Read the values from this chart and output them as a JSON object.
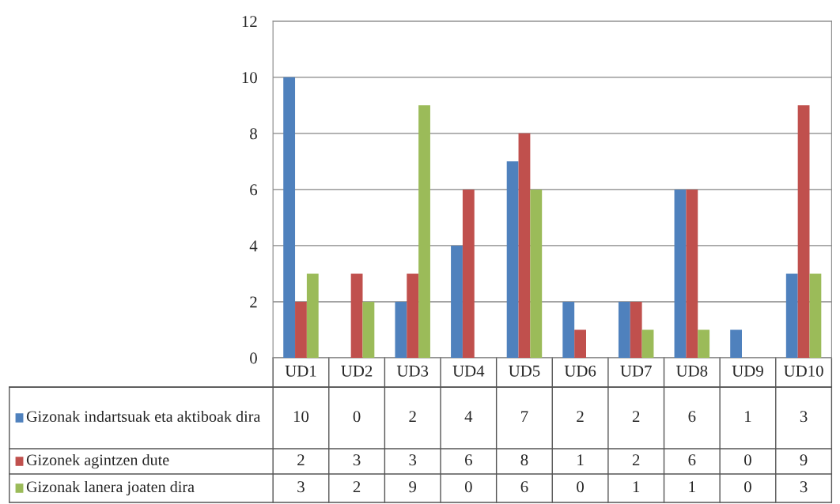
{
  "chart_data": {
    "type": "bar",
    "categories": [
      "UD1",
      "UD2",
      "UD3",
      "UD4",
      "UD5",
      "UD6",
      "UD7",
      "UD8",
      "UD9",
      "UD10"
    ],
    "series": [
      {
        "name": "Gizonak indartsuak eta aktiboak dira",
        "color": "#4f81bd",
        "values": [
          10,
          0,
          2,
          4,
          7,
          2,
          2,
          6,
          1,
          3
        ]
      },
      {
        "name": "Gizonek agintzen dute",
        "color": "#c0504d",
        "values": [
          2,
          3,
          3,
          6,
          8,
          1,
          2,
          6,
          0,
          9
        ]
      },
      {
        "name": "Gizonak lanera joaten dira",
        "color": "#9bbb59",
        "values": [
          3,
          2,
          9,
          0,
          6,
          0,
          1,
          1,
          0,
          3
        ]
      }
    ],
    "ylim": [
      0,
      12
    ],
    "yticks": [
      0,
      2,
      4,
      6,
      8,
      10,
      12
    ],
    "grid": "y",
    "legend": "bottom",
    "data_labels": true
  }
}
